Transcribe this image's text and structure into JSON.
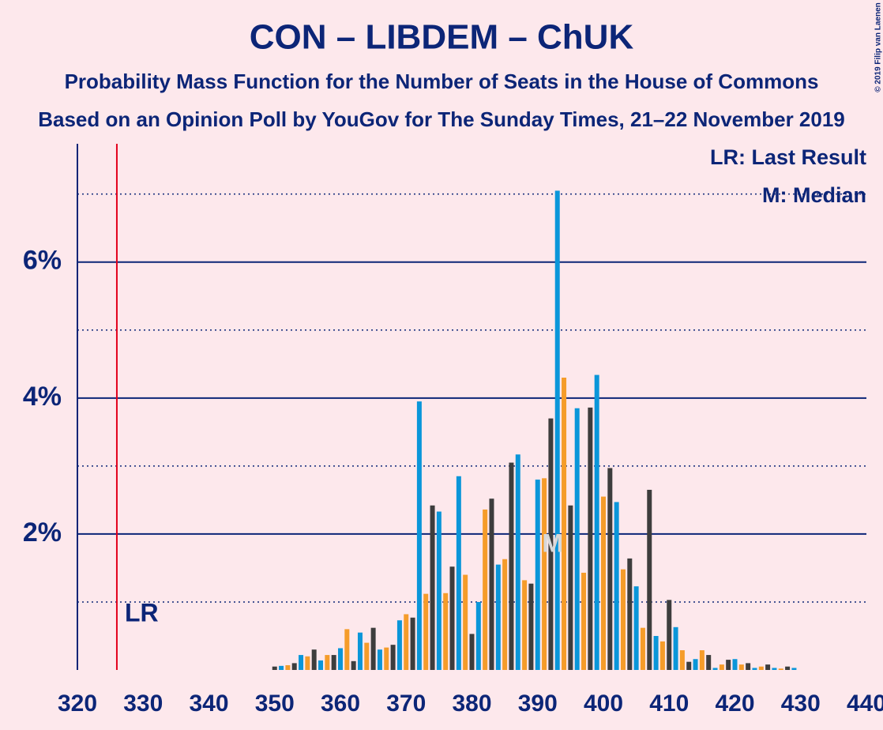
{
  "chart_data": {
    "type": "bar",
    "title": "CON – LIBDEM – ChUK",
    "subtitle": "Probability Mass Function for the Number of Seats in the House of Commons",
    "subtitle2": "Based on an Opinion Poll by YouGov for The Sunday Times, 21–22 November 2019",
    "copyright": "© 2019 Filip van Laenen",
    "legend": [
      "LR: Last Result",
      "M: Median"
    ],
    "last_result": {
      "label": "LR",
      "x": 326
    },
    "median": {
      "label": "M",
      "x": 393
    },
    "color_cycle": [
      "#3d3d3d",
      "#0a96d9",
      "#f59c2a"
    ],
    "x": [
      320,
      321,
      322,
      323,
      324,
      325,
      326,
      327,
      328,
      329,
      330,
      331,
      332,
      333,
      334,
      335,
      336,
      337,
      338,
      339,
      340,
      341,
      342,
      343,
      344,
      345,
      346,
      347,
      348,
      349,
      350,
      351,
      352,
      353,
      354,
      355,
      356,
      357,
      358,
      359,
      360,
      361,
      362,
      363,
      364,
      365,
      366,
      367,
      368,
      369,
      370,
      371,
      372,
      373,
      374,
      375,
      376,
      377,
      378,
      379,
      380,
      381,
      382,
      383,
      384,
      385,
      386,
      387,
      388,
      389,
      390,
      391,
      392,
      393,
      394,
      395,
      396,
      397,
      398,
      399,
      400,
      401,
      402,
      403,
      404,
      405,
      406,
      407,
      408,
      409,
      410,
      411,
      412,
      413,
      414,
      415,
      416,
      417,
      418,
      419,
      420,
      421,
      422,
      423,
      424,
      425,
      426,
      427,
      428,
      429,
      430,
      431,
      432,
      433,
      434,
      435,
      436,
      437,
      438,
      439,
      440
    ],
    "values": [
      0,
      0,
      0,
      0,
      0,
      0,
      0,
      0,
      0,
      0,
      0,
      0,
      0,
      0,
      0,
      0,
      0,
      0,
      0,
      0,
      0,
      0,
      0,
      0,
      0,
      0,
      0,
      0,
      0,
      0,
      0.05,
      0.06,
      0.07,
      0.1,
      0.22,
      0.2,
      0.3,
      0.14,
      0.22,
      0.22,
      0.32,
      0.6,
      0.13,
      0.55,
      0.4,
      0.62,
      0.3,
      0.33,
      0.37,
      0.73,
      0.82,
      0.77,
      3.95,
      1.12,
      2.42,
      2.33,
      1.13,
      1.52,
      2.85,
      1.4,
      0.53,
      1.0,
      2.36,
      2.52,
      1.55,
      1.63,
      3.05,
      3.17,
      1.32,
      1.27,
      2.8,
      2.82,
      3.7,
      7.05,
      4.3,
      2.42,
      3.85,
      1.43,
      3.86,
      4.34,
      2.55,
      2.97,
      2.47,
      1.48,
      1.64,
      1.23,
      0.62,
      2.65,
      0.5,
      0.42,
      1.03,
      0.63,
      0.29,
      0.12,
      0.16,
      0.29,
      0.22,
      0.03,
      0.08,
      0.15,
      0.16,
      0.08,
      0.1,
      0.03,
      0.05,
      0.08,
      0.03,
      0.02,
      0.05,
      0.03,
      0,
      0,
      0,
      0,
      0,
      0,
      0,
      0,
      0,
      0,
      0
    ],
    "xlim": [
      320,
      440
    ],
    "xticks": [
      320,
      330,
      340,
      350,
      360,
      370,
      380,
      390,
      400,
      410,
      420,
      430,
      440
    ],
    "ylim": [
      0,
      7.74
    ],
    "yticks": [
      {
        "value": 2,
        "label": "2%"
      },
      {
        "value": 4,
        "label": "4%"
      },
      {
        "value": 6,
        "label": "6%"
      }
    ],
    "minor_yticks": [
      1,
      3,
      5,
      7
    ]
  }
}
